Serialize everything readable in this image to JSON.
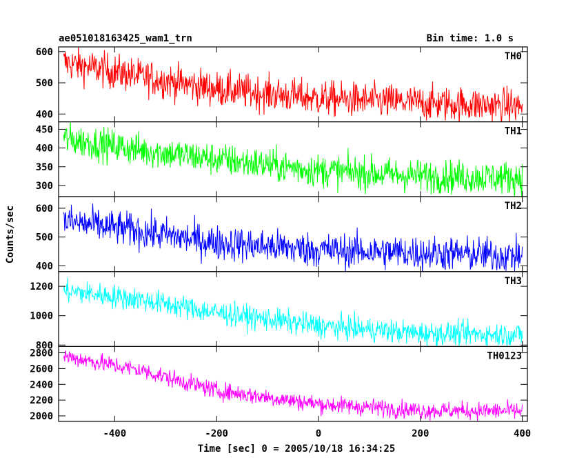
{
  "chart_data": {
    "type": "line",
    "title": "ae051018163425_wam1_trn",
    "bin_time_label": "Bin time: 1.0 s",
    "xlabel": "Time [sec] 0 = 2005/10/18 16:34:25",
    "ylabel": "Counts/sec",
    "xlim": [
      -510,
      410
    ],
    "x_ticks": [
      -400,
      -200,
      0,
      200,
      400
    ],
    "grid": false,
    "panels": [
      {
        "name": "TH0",
        "color": "#ff0000",
        "ylim": [
          375,
          615
        ],
        "y_ticks": [
          400,
          500,
          600
        ],
        "trend": [
          [
            -500,
            565
          ],
          [
            -350,
            520
          ],
          [
            -200,
            480
          ],
          [
            0,
            450
          ],
          [
            200,
            435
          ],
          [
            400,
            425
          ]
        ],
        "noise": 28
      },
      {
        "name": "TH1",
        "color": "#00ff00",
        "ylim": [
          270,
          470
        ],
        "y_ticks": [
          300,
          350,
          400,
          450
        ],
        "trend": [
          [
            -500,
            425
          ],
          [
            -350,
            395
          ],
          [
            -200,
            370
          ],
          [
            0,
            340
          ],
          [
            200,
            325
          ],
          [
            400,
            320
          ]
        ],
        "noise": 22
      },
      {
        "name": "TH2",
        "color": "#0000ff",
        "ylim": [
          380,
          640
        ],
        "y_ticks": [
          400,
          500,
          600
        ],
        "trend": [
          [
            -500,
            555
          ],
          [
            -350,
            520
          ],
          [
            -200,
            480
          ],
          [
            0,
            455
          ],
          [
            200,
            445
          ],
          [
            400,
            435
          ]
        ],
        "noise": 30
      },
      {
        "name": "TH3",
        "color": "#00ffff",
        "ylim": [
          790,
          1300
        ],
        "y_ticks": [
          800,
          1000,
          1200
        ],
        "trend": [
          [
            -500,
            1170
          ],
          [
            -350,
            1110
          ],
          [
            -200,
            1020
          ],
          [
            0,
            930
          ],
          [
            200,
            880
          ],
          [
            400,
            870
          ]
        ],
        "noise": 40
      },
      {
        "name": "TH0123",
        "color": "#ff00ff",
        "ylim": [
          1930,
          2880
        ],
        "y_ticks": [
          2000,
          2200,
          2400,
          2600,
          2800
        ],
        "trend": [
          [
            -500,
            2760
          ],
          [
            -350,
            2580
          ],
          [
            -200,
            2320
          ],
          [
            0,
            2150
          ],
          [
            200,
            2070
          ],
          [
            400,
            2060
          ]
        ],
        "noise": 55
      }
    ]
  }
}
